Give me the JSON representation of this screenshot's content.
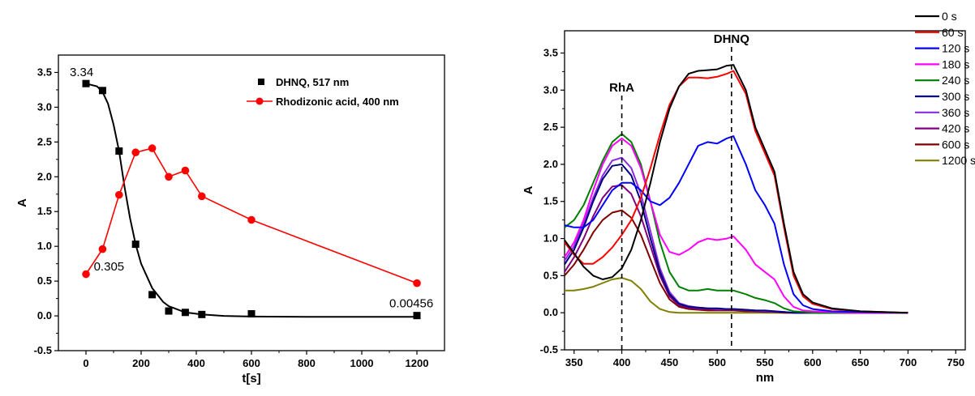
{
  "chart_data": [
    {
      "type": "scatter",
      "xlabel": "t[s]",
      "ylabel": "A",
      "xlim": [
        -100,
        1300
      ],
      "ylim": [
        -0.5,
        3.75
      ],
      "xticks": [
        "0",
        "200",
        "400",
        "600",
        "800",
        "1000",
        "1200"
      ],
      "yticks": [
        "-0.5",
        "0.0",
        "0.5",
        "1.0",
        "1.5",
        "2.0",
        "2.5",
        "3.0",
        "3.5"
      ],
      "grid": false,
      "legend_position": "top-right",
      "series": [
        {
          "name": "DHNQ, 517 nm",
          "color": "#000000",
          "marker": "square",
          "x": [
            0,
            60,
            120,
            180,
            240,
            300,
            360,
            420,
            600,
            1200
          ],
          "y": [
            3.34,
            3.24,
            2.37,
            1.03,
            0.305,
            0.07,
            0.05,
            0.02,
            0.03,
            0.00456
          ],
          "fit": {
            "x": [
              0,
              40,
              60,
              80,
              100,
              120,
              140,
              160,
              180,
              200,
              240,
              280,
              300,
              360,
              420,
              500,
              600,
              800,
              1000,
              1200
            ],
            "y": [
              3.34,
              3.3,
              3.22,
              3.05,
              2.75,
              2.37,
              1.85,
              1.4,
              1.03,
              0.75,
              0.4,
              0.2,
              0.14,
              0.05,
              0.02,
              0.0,
              -0.01,
              -0.015,
              -0.015,
              -0.015
            ]
          }
        },
        {
          "name": "Rhodizonic acid, 400 nm",
          "color": "#ff0000",
          "marker": "circle",
          "x": [
            0,
            60,
            120,
            180,
            240,
            300,
            360,
            420,
            600,
            1200
          ],
          "y": [
            0.6,
            0.96,
            1.74,
            2.35,
            2.41,
            2.0,
            2.09,
            1.72,
            1.38,
            0.47
          ]
        }
      ],
      "annotations": [
        {
          "text": "3.34",
          "x": 0,
          "y": 3.34
        },
        {
          "text": "0.305",
          "x": 240,
          "y": 0.305
        },
        {
          "text": "0.00456",
          "x": 1200,
          "y": 0.00456
        }
      ]
    },
    {
      "type": "line",
      "xlabel": "nm",
      "ylabel": "A",
      "xlim": [
        340,
        760
      ],
      "ylim": [
        -0.5,
        3.8
      ],
      "xticks": [
        "350",
        "400",
        "450",
        "500",
        "550",
        "600",
        "650",
        "700",
        "750"
      ],
      "yticks": [
        "-0.5",
        "0.0",
        "0.5",
        "1.0",
        "1.5",
        "2.0",
        "2.5",
        "3.0",
        "3.5"
      ],
      "grid": false,
      "legend_position": "top-right",
      "vlines": [
        {
          "x": 400,
          "label": "RhA"
        },
        {
          "x": 515,
          "label": "DHNQ"
        }
      ],
      "series": [
        {
          "name": "0 s",
          "color": "#000000",
          "x": [
            340,
            350,
            360,
            370,
            380,
            390,
            400,
            410,
            420,
            430,
            440,
            450,
            460,
            470,
            480,
            490,
            500,
            510,
            517,
            530,
            540,
            550,
            560,
            570,
            580,
            590,
            600,
            620,
            650,
            700
          ],
          "y": [
            0.98,
            0.8,
            0.62,
            0.5,
            0.45,
            0.48,
            0.6,
            0.85,
            1.25,
            1.75,
            2.3,
            2.75,
            3.05,
            3.22,
            3.26,
            3.27,
            3.28,
            3.33,
            3.34,
            3.0,
            2.5,
            2.2,
            1.9,
            1.2,
            0.55,
            0.25,
            0.14,
            0.06,
            0.02,
            0.0
          ]
        },
        {
          "name": "60 s",
          "color": "#ff0000",
          "x": [
            340,
            350,
            360,
            370,
            380,
            390,
            400,
            410,
            420,
            430,
            440,
            450,
            460,
            470,
            480,
            490,
            500,
            510,
            517,
            530,
            540,
            550,
            560,
            570,
            580,
            590,
            600,
            620,
            650,
            700
          ],
          "y": [
            0.95,
            0.78,
            0.66,
            0.66,
            0.75,
            0.88,
            1.05,
            1.25,
            1.55,
            1.95,
            2.4,
            2.8,
            3.05,
            3.17,
            3.17,
            3.16,
            3.18,
            3.22,
            3.26,
            2.95,
            2.45,
            2.15,
            1.85,
            1.15,
            0.5,
            0.22,
            0.12,
            0.05,
            0.02,
            0.0
          ]
        },
        {
          "name": "120 s",
          "color": "#0000ff",
          "x": [
            340,
            350,
            360,
            370,
            380,
            390,
            400,
            410,
            420,
            430,
            440,
            450,
            460,
            470,
            480,
            490,
            500,
            510,
            517,
            530,
            540,
            550,
            560,
            570,
            580,
            590,
            600,
            620,
            650,
            700
          ],
          "y": [
            1.18,
            1.15,
            1.15,
            1.25,
            1.45,
            1.65,
            1.75,
            1.75,
            1.65,
            1.5,
            1.45,
            1.55,
            1.75,
            2.0,
            2.25,
            2.3,
            2.28,
            2.35,
            2.38,
            2.0,
            1.65,
            1.45,
            1.2,
            0.65,
            0.25,
            0.1,
            0.05,
            0.02,
            0.01,
            0.0
          ]
        },
        {
          "name": "180 s",
          "color": "#ff00ff",
          "x": [
            340,
            350,
            360,
            370,
            380,
            390,
            400,
            410,
            420,
            430,
            440,
            450,
            460,
            470,
            480,
            490,
            500,
            510,
            517,
            530,
            540,
            550,
            560,
            570,
            580,
            590,
            600,
            620,
            650,
            700
          ],
          "y": [
            0.75,
            0.95,
            1.25,
            1.65,
            2.0,
            2.25,
            2.35,
            2.25,
            1.95,
            1.5,
            1.05,
            0.82,
            0.78,
            0.85,
            0.95,
            1.0,
            0.98,
            1.0,
            1.03,
            0.85,
            0.65,
            0.55,
            0.45,
            0.22,
            0.08,
            0.03,
            0.02,
            0.01,
            0.0,
            0.0
          ]
        },
        {
          "name": "240 s",
          "color": "#008000",
          "x": [
            340,
            350,
            360,
            370,
            380,
            390,
            400,
            410,
            420,
            430,
            440,
            450,
            460,
            470,
            480,
            490,
            500,
            510,
            517,
            530,
            540,
            550,
            560,
            570,
            580,
            590,
            600,
            620,
            650,
            700
          ],
          "y": [
            1.15,
            1.25,
            1.45,
            1.75,
            2.05,
            2.3,
            2.41,
            2.3,
            2.0,
            1.5,
            0.95,
            0.55,
            0.35,
            0.3,
            0.3,
            0.32,
            0.3,
            0.3,
            0.3,
            0.25,
            0.2,
            0.17,
            0.13,
            0.06,
            0.02,
            0.01,
            0.0,
            0.0,
            0.0,
            0.0
          ]
        },
        {
          "name": "300 s",
          "color": "#000080",
          "x": [
            340,
            350,
            360,
            370,
            380,
            390,
            400,
            410,
            420,
            430,
            440,
            450,
            460,
            470,
            480,
            490,
            500,
            510,
            517,
            530,
            540,
            550,
            560,
            570,
            580,
            590,
            600,
            620,
            650,
            700
          ],
          "y": [
            0.65,
            0.85,
            1.15,
            1.5,
            1.8,
            1.98,
            2.0,
            1.85,
            1.5,
            1.0,
            0.55,
            0.25,
            0.12,
            0.08,
            0.07,
            0.06,
            0.06,
            0.05,
            0.05,
            0.04,
            0.03,
            0.03,
            0.02,
            0.01,
            0.0,
            0.0,
            0.0,
            0.0,
            0.0,
            0.0
          ]
        },
        {
          "name": "360 s",
          "color": "#8a2be2",
          "x": [
            340,
            350,
            360,
            370,
            380,
            390,
            400,
            410,
            420,
            430,
            440,
            450,
            460,
            470,
            480,
            490,
            500,
            510,
            517,
            530,
            540,
            550,
            560,
            570,
            580,
            590,
            600,
            620,
            650,
            700
          ],
          "y": [
            0.7,
            0.9,
            1.2,
            1.55,
            1.85,
            2.05,
            2.09,
            1.95,
            1.6,
            1.1,
            0.6,
            0.28,
            0.13,
            0.09,
            0.07,
            0.06,
            0.05,
            0.05,
            0.05,
            0.04,
            0.03,
            0.02,
            0.02,
            0.01,
            0.0,
            0.0,
            0.0,
            0.0,
            0.0,
            0.0
          ]
        },
        {
          "name": "420 s",
          "color": "#800080",
          "x": [
            340,
            350,
            360,
            370,
            380,
            390,
            400,
            410,
            420,
            430,
            440,
            450,
            460,
            470,
            480,
            490,
            500,
            510,
            517,
            530,
            540,
            550,
            560,
            570,
            580,
            590,
            600,
            620,
            650,
            700
          ],
          "y": [
            0.55,
            0.75,
            1.0,
            1.3,
            1.55,
            1.7,
            1.72,
            1.6,
            1.3,
            0.9,
            0.5,
            0.22,
            0.1,
            0.07,
            0.05,
            0.05,
            0.04,
            0.04,
            0.04,
            0.03,
            0.02,
            0.02,
            0.01,
            0.01,
            0.0,
            0.0,
            0.0,
            0.0,
            0.0,
            0.0
          ]
        },
        {
          "name": "600 s",
          "color": "#800000",
          "x": [
            340,
            350,
            360,
            370,
            380,
            390,
            400,
            410,
            420,
            430,
            440,
            450,
            460,
            470,
            480,
            490,
            500,
            510,
            517,
            530,
            540,
            550,
            560,
            570,
            580,
            590,
            600,
            620,
            650,
            700
          ],
          "y": [
            0.5,
            0.65,
            0.85,
            1.08,
            1.25,
            1.35,
            1.38,
            1.28,
            1.05,
            0.72,
            0.4,
            0.18,
            0.08,
            0.05,
            0.04,
            0.03,
            0.03,
            0.03,
            0.03,
            0.02,
            0.02,
            0.01,
            0.01,
            0.0,
            0.0,
            0.0,
            0.0,
            0.0,
            0.0,
            0.0
          ]
        },
        {
          "name": "1200 s",
          "color": "#808000",
          "x": [
            340,
            350,
            360,
            370,
            380,
            390,
            400,
            410,
            420,
            430,
            440,
            450,
            460,
            470,
            480,
            490,
            500,
            510,
            517,
            530,
            540,
            550,
            560,
            570,
            580,
            590,
            600,
            620,
            650,
            700
          ],
          "y": [
            0.3,
            0.3,
            0.32,
            0.35,
            0.4,
            0.45,
            0.47,
            0.43,
            0.32,
            0.15,
            0.05,
            0.01,
            0.0,
            0.0,
            0.0,
            0.0,
            0.0,
            0.0,
            0.0,
            0.0,
            0.0,
            0.0,
            0.0,
            0.0,
            0.0,
            0.0,
            0.0,
            0.0,
            0.0,
            0.0
          ]
        }
      ]
    }
  ]
}
